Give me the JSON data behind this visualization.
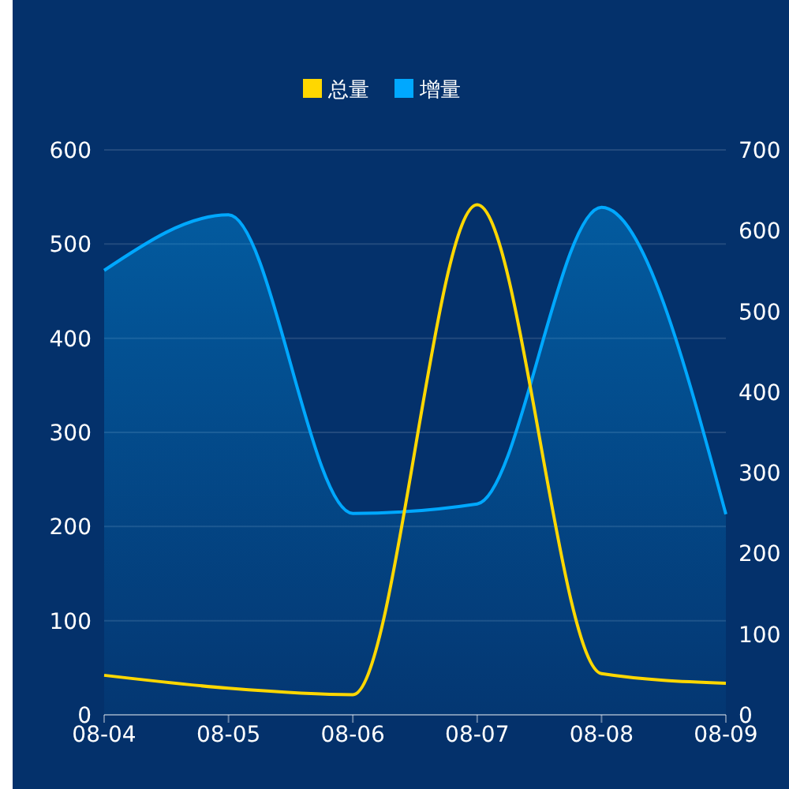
{
  "chart_data": {
    "type": "line",
    "categories": [
      "08-04",
      "08-05",
      "08-06",
      "08-07",
      "08-08",
      "08-09"
    ],
    "series": [
      {
        "name": "总量",
        "color": "#ffd700",
        "axis": "y2",
        "values": [
          49,
          33,
          25,
          632,
          51,
          39
        ]
      },
      {
        "name": "增量",
        "color": "#00a8ff",
        "type": "area",
        "values": [
          472,
          531,
          214,
          224,
          539,
          213
        ]
      }
    ],
    "ylim": [
      0,
      600
    ],
    "yticks": [
      0,
      100,
      200,
      300,
      400,
      500,
      600
    ],
    "y2lim": [
      0,
      700
    ],
    "y2ticks": [
      0,
      100,
      200,
      300,
      400,
      500,
      600,
      700
    ],
    "grid": "y",
    "legend": "top"
  }
}
